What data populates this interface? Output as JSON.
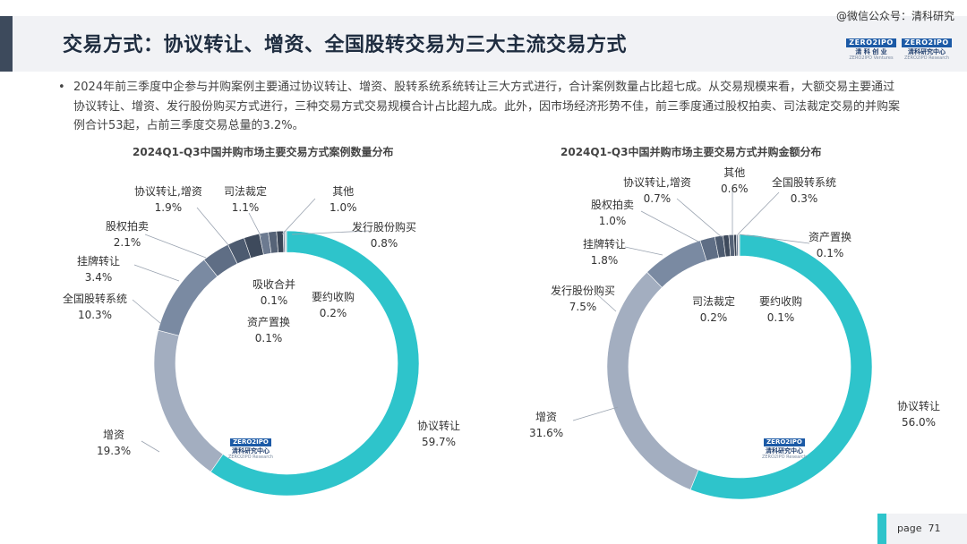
{
  "header": {
    "title": "交易方式：协议转让、增资、全国股转交易为三大主流交易方式",
    "watermark": "@微信公众号：清科研究"
  },
  "logos": {
    "left": {
      "mark": "ZERO2IPO",
      "cn": "清 科 创 业",
      "en": "ZERO2IPO Ventures"
    },
    "right": {
      "mark": "ZERO2IPO",
      "cn": "清科研究中心",
      "en": "ZERO2IPO Research"
    }
  },
  "summary": {
    "bullet": "•",
    "text": "2024年前三季度中企参与并购案例主要通过协议转让、增资、股转系统系统转让三大方式进行，合计案例数量占比超七成。从交易规模来看，大额交易主要通过协议转让、增资、发行股份购买方式进行，三种交易方式交易规模合计占比超九成。此外，因市场经济形势不佳，前三季度通过股权拍卖、司法裁定交易的并购案例合计53起，占前三季度交易总量的3.2%。"
  },
  "chart_data": [
    {
      "type": "pie",
      "title": "2024Q1-Q3中国并购市场主要交易方式案例数量分布",
      "unit": "%",
      "slices": [
        {
          "name": "协议转让",
          "value": 59.7,
          "label": "59.7%",
          "color": "#2ec4cb"
        },
        {
          "name": "增资",
          "value": 19.3,
          "label": "19.3%",
          "color": "#a3aec0"
        },
        {
          "name": "全国股转系统",
          "value": 10.3,
          "label": "10.3%",
          "color": "#7a8aa2"
        },
        {
          "name": "挂牌转让",
          "value": 3.4,
          "label": "3.4%",
          "color": "#5f6e85"
        },
        {
          "name": "股权拍卖",
          "value": 2.1,
          "label": "2.1%",
          "color": "#4d5b70"
        },
        {
          "name": "协议转让,增资",
          "value": 1.9,
          "label": "1.9%",
          "color": "#3e4a5c"
        },
        {
          "name": "司法裁定",
          "value": 1.1,
          "label": "1.1%",
          "color": "#6c7a90"
        },
        {
          "name": "其他",
          "value": 1.0,
          "label": "1.0%",
          "color": "#566377"
        },
        {
          "name": "发行股份购买",
          "value": 0.8,
          "label": "0.8%",
          "color": "#3a4556"
        },
        {
          "name": "要约收购",
          "value": 0.2,
          "label": "0.2%",
          "color": "#8795aa"
        },
        {
          "name": "资产置换",
          "value": 0.1,
          "label": "0.1%",
          "color": "#4a5669"
        },
        {
          "name": "吸收合并",
          "value": 0.1,
          "label": "0.1%",
          "color": "#6a778b"
        }
      ]
    },
    {
      "type": "pie",
      "title": "2024Q1-Q3中国并购市场主要交易方式并购金额分布",
      "unit": "%",
      "slices": [
        {
          "name": "协议转让",
          "value": 56.0,
          "label": "56.0%",
          "color": "#2ec4cb"
        },
        {
          "name": "增资",
          "value": 31.6,
          "label": "31.6%",
          "color": "#a3aec0"
        },
        {
          "name": "发行股份购买",
          "value": 7.5,
          "label": "7.5%",
          "color": "#7a8aa2"
        },
        {
          "name": "挂牌转让",
          "value": 1.8,
          "label": "1.8%",
          "color": "#5f6e85"
        },
        {
          "name": "股权拍卖",
          "value": 1.0,
          "label": "1.0%",
          "color": "#4d5b70"
        },
        {
          "name": "协议转让,增资",
          "value": 0.7,
          "label": "0.7%",
          "color": "#3e4a5c"
        },
        {
          "name": "其他",
          "value": 0.6,
          "label": "0.6%",
          "color": "#566377"
        },
        {
          "name": "全国股转系统",
          "value": 0.3,
          "label": "0.3%",
          "color": "#3a4556"
        },
        {
          "name": "司法裁定",
          "value": 0.2,
          "label": "0.2%",
          "color": "#6c7a90"
        },
        {
          "name": "要约收购",
          "value": 0.1,
          "label": "0.1%",
          "color": "#8795aa"
        },
        {
          "name": "资产置换",
          "value": 0.1,
          "label": "0.1%",
          "color": "#4a5669"
        }
      ]
    }
  ],
  "chart_logo": {
    "mark": "ZERO2IPO",
    "cn": "清科研究中心",
    "en": "ZERO2IPO Research"
  },
  "footer": {
    "page_label": "page",
    "page_number": "71"
  },
  "colors": {
    "accent": "#2ec4cb",
    "header_accent": "#3d4a5c"
  }
}
